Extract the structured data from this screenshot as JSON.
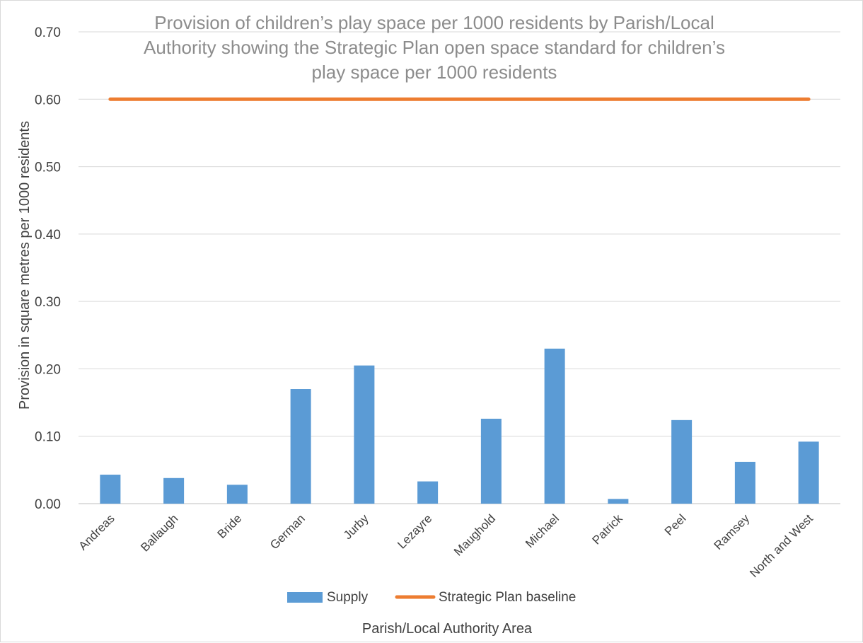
{
  "chart_data": {
    "type": "bar",
    "title_lines": [
      "Provision of children’s play space per 1000 residents by Parish/Local",
      "Authority showing the Strategic Plan open space standard for children’s",
      "play space per 1000 residents"
    ],
    "xlabel": "Parish/Local Authority Area",
    "ylabel": "Provision in square metres per 1000 residents",
    "ylim": [
      0,
      0.7
    ],
    "yticks": [
      "0.00",
      "0.10",
      "0.20",
      "0.30",
      "0.40",
      "0.50",
      "0.60",
      "0.70"
    ],
    "grid": true,
    "legend_position": "bottom",
    "categories": [
      "Andreas",
      "Ballaugh",
      "Bride",
      "German",
      "Jurby",
      "Lezayre",
      "Maughold",
      "Michael",
      "Patrick",
      "Peel",
      "Ramsey",
      "North and West"
    ],
    "series": [
      {
        "name": "Supply",
        "type": "bar",
        "color": "#5b9bd5",
        "values": [
          0.043,
          0.038,
          0.028,
          0.17,
          0.205,
          0.033,
          0.126,
          0.23,
          0.007,
          0.124,
          0.062,
          0.092
        ]
      },
      {
        "name": "Strategic Plan baseline",
        "type": "line",
        "color": "#ed7d31",
        "values": [
          0.6,
          0.6,
          0.6,
          0.6,
          0.6,
          0.6,
          0.6,
          0.6,
          0.6,
          0.6,
          0.6,
          0.6
        ]
      }
    ]
  }
}
